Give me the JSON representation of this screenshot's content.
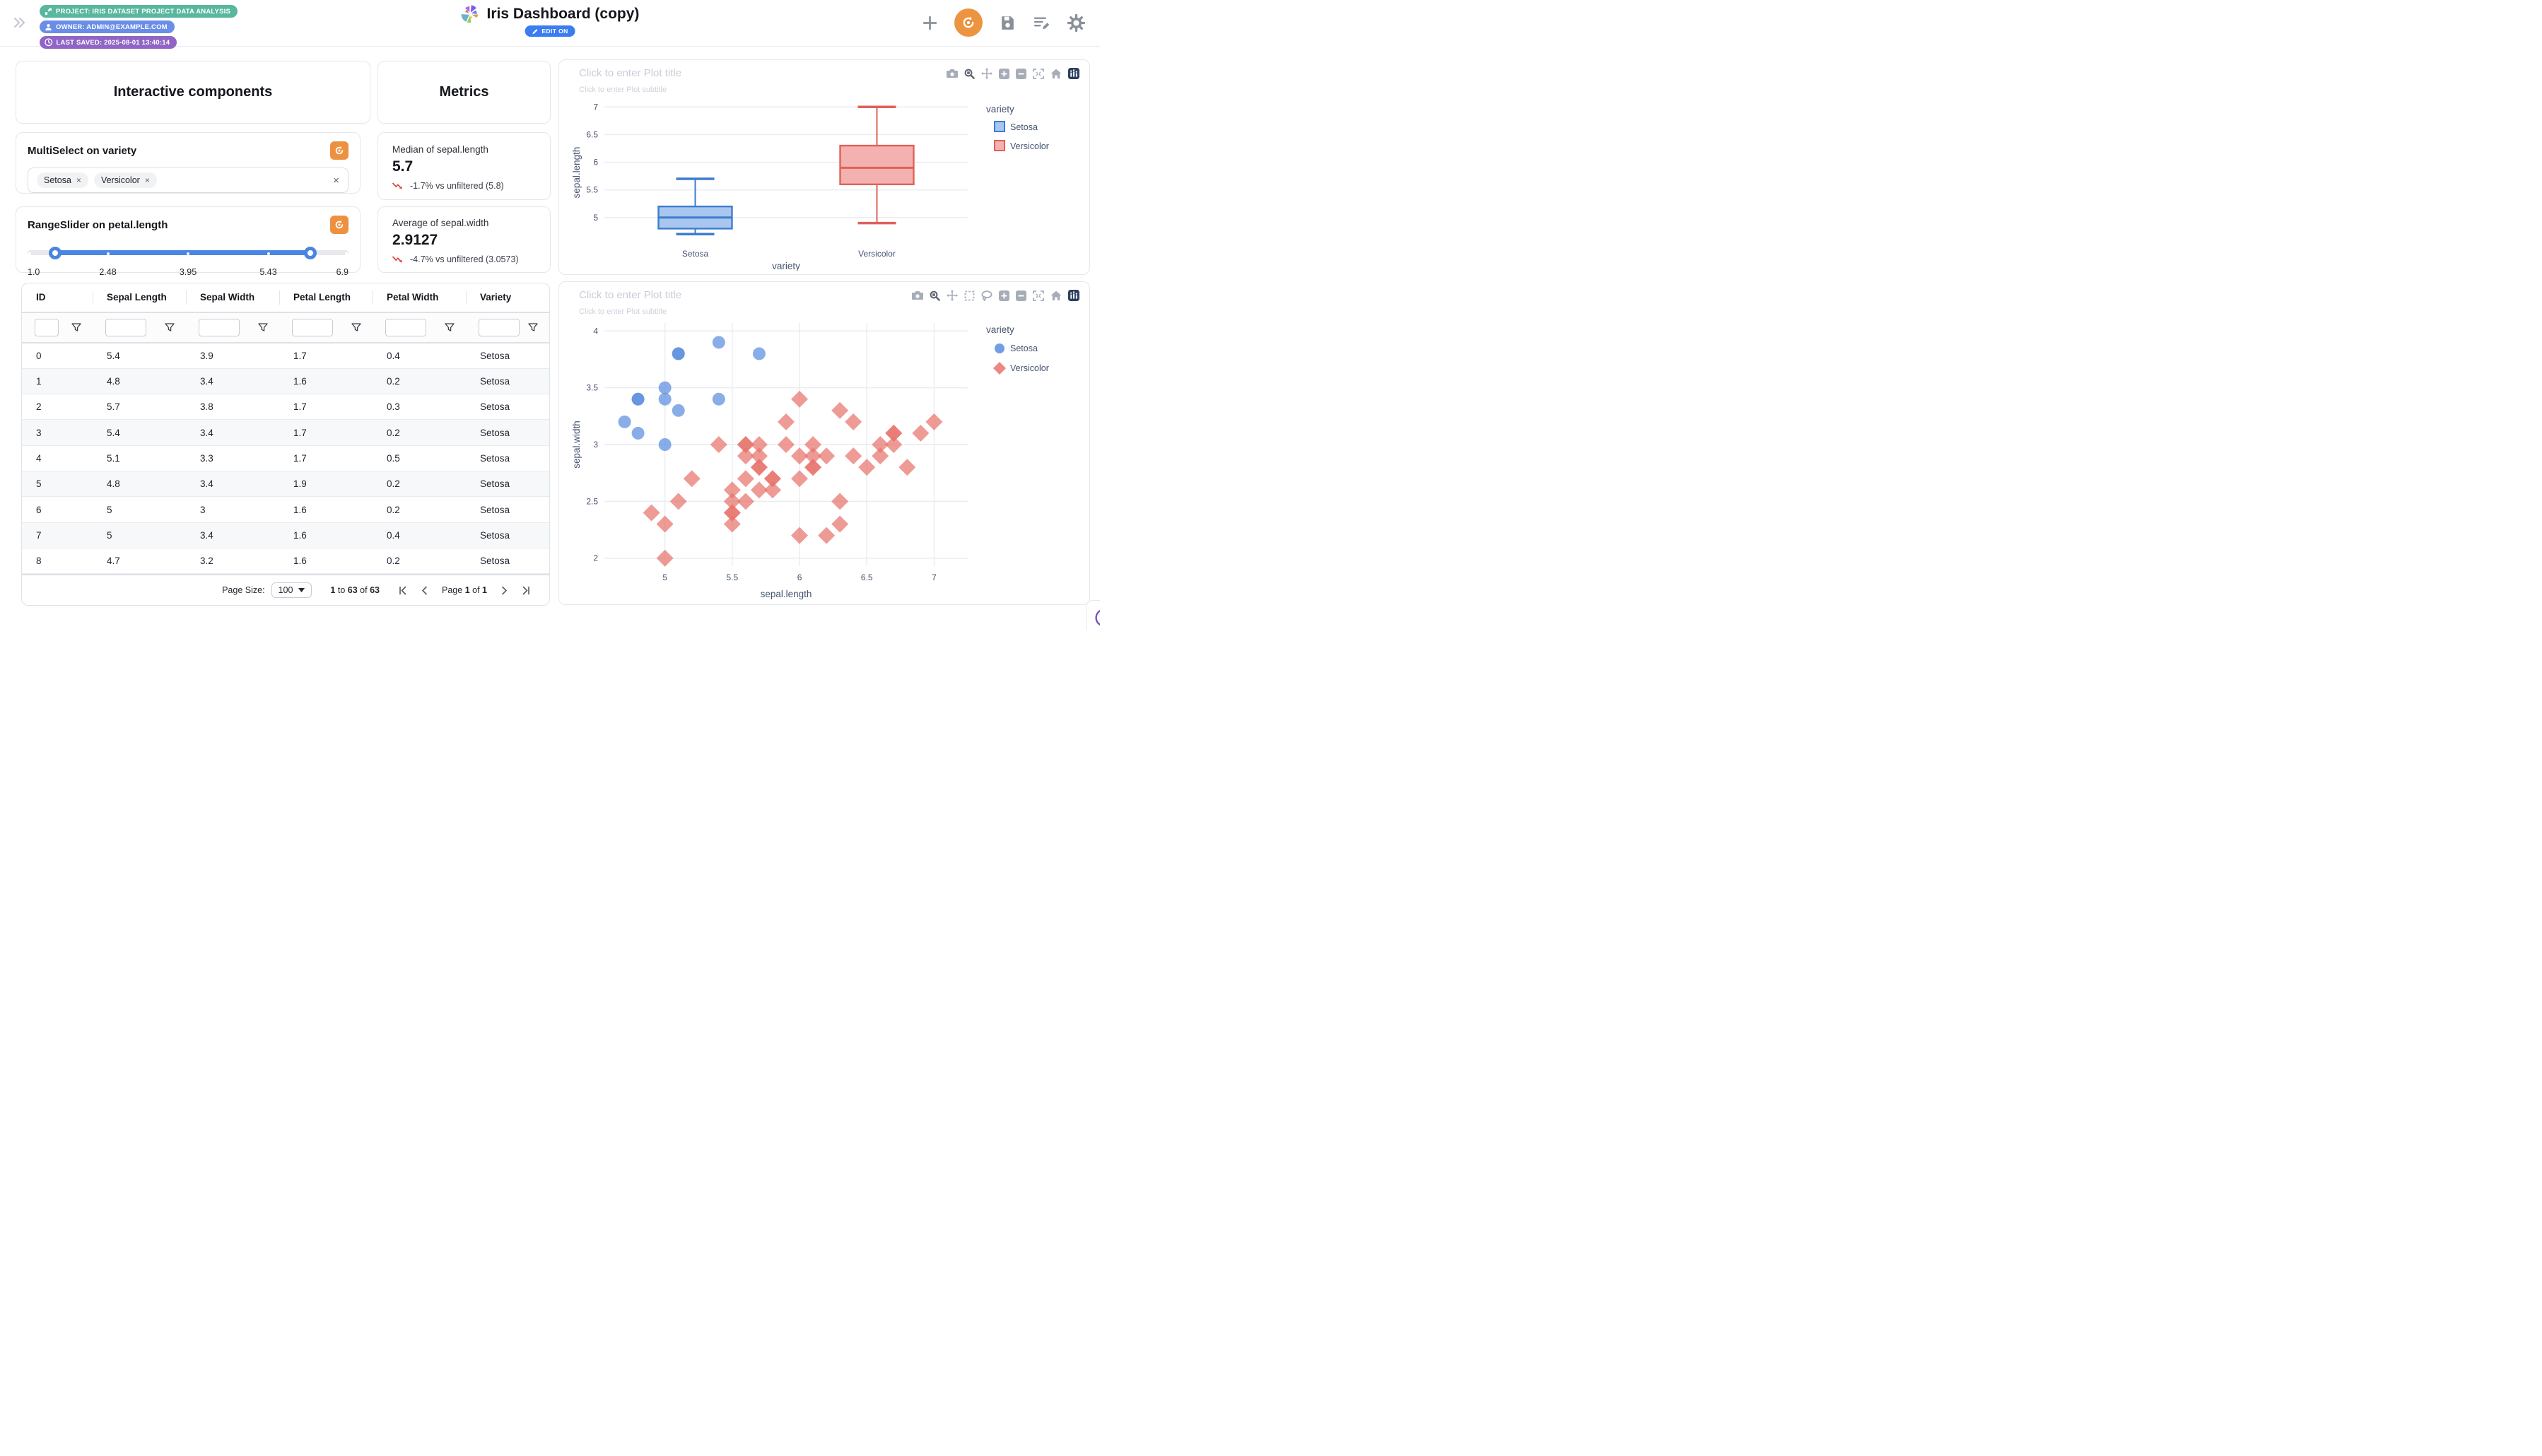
{
  "header": {
    "collapse_icon": "double-chevron-right",
    "badges": [
      {
        "id": "project",
        "label": "PROJECT: IRIS DATASET PROJECT DATA ANALYSIS",
        "color": "#58b79e",
        "icon": "project-icon"
      },
      {
        "id": "owner",
        "label": "OWNER: ADMIN@EXAMPLE.COM",
        "color": "#6a8ee6",
        "icon": "user-icon"
      },
      {
        "id": "last_saved",
        "label": "LAST SAVED: 2025-08-01 13:40:14",
        "color": "#9065c6",
        "icon": "clock-icon"
      }
    ],
    "title": "Iris Dashboard (copy)",
    "edit_toggle_label": "EDIT ON",
    "action_icons": [
      "add-icon",
      "reset-icon",
      "save-icon",
      "edit-list-icon",
      "settings-icon"
    ],
    "accent_orange": "#ec9440",
    "accent_blue": "#3b7cf0"
  },
  "interactive_panel": {
    "title": "Interactive components"
  },
  "metrics_panel": {
    "title": "Metrics"
  },
  "multiselect": {
    "title": "MultiSelect on variety",
    "selected": [
      "Setosa",
      "Versicolor"
    ],
    "remove_icon": "×",
    "clear_icon": "×"
  },
  "rangeslider": {
    "title": "RangeSlider on petal.length",
    "labels": [
      "1.0",
      "2.48",
      "3.95",
      "5.43",
      "6.9"
    ],
    "label_positions_pct": [
      0,
      25,
      50,
      75,
      100
    ],
    "handle_positions_pct": [
      8.7,
      88.2
    ],
    "track_color": "#4a86e0"
  },
  "metric_cards": [
    {
      "label": "Median of sepal.length",
      "value": "5.7",
      "delta": "-1.7% vs unfiltered (5.8)",
      "trend": "down",
      "trend_color": "#e0433d"
    },
    {
      "label": "Average of sepal.width",
      "value": "2.9127",
      "delta": "-4.7% vs unfiltered (3.0573)",
      "trend": "down",
      "trend_color": "#e0433d"
    }
  ],
  "table": {
    "columns": [
      "ID",
      "Sepal Length",
      "Sepal Width",
      "Petal Length",
      "Petal Width",
      "Variety"
    ],
    "filter_icon": "funnel-icon",
    "rows": [
      [
        "0",
        "5.4",
        "3.9",
        "1.7",
        "0.4",
        "Setosa"
      ],
      [
        "1",
        "4.8",
        "3.4",
        "1.6",
        "0.2",
        "Setosa"
      ],
      [
        "2",
        "5.7",
        "3.8",
        "1.7",
        "0.3",
        "Setosa"
      ],
      [
        "3",
        "5.4",
        "3.4",
        "1.7",
        "0.2",
        "Setosa"
      ],
      [
        "4",
        "5.1",
        "3.3",
        "1.7",
        "0.5",
        "Setosa"
      ],
      [
        "5",
        "4.8",
        "3.4",
        "1.9",
        "0.2",
        "Setosa"
      ],
      [
        "6",
        "5",
        "3",
        "1.6",
        "0.2",
        "Setosa"
      ],
      [
        "7",
        "5",
        "3.4",
        "1.6",
        "0.4",
        "Setosa"
      ],
      [
        "8",
        "4.7",
        "3.2",
        "1.6",
        "0.2",
        "Setosa"
      ]
    ],
    "pagination": {
      "page_size_label": "Page Size:",
      "page_size": "100",
      "range": {
        "from": "1",
        "word_to": "to",
        "to": "63",
        "word_of": "of",
        "total": "63"
      },
      "page": {
        "word_page": "Page",
        "current": "1",
        "word_of": "of",
        "total": "1"
      },
      "nav_icons": [
        "first-page-icon",
        "prev-page-icon",
        "next-page-icon",
        "last-page-icon"
      ]
    }
  },
  "chart_data": [
    {
      "type": "box",
      "title_placeholder": "Click to enter Plot title",
      "subtitle_placeholder": "Click to enter Plot subtitle",
      "xlabel": "variety",
      "ylabel": "sepal.length",
      "legend_title": "variety",
      "categories": [
        "Setosa",
        "Versicolor"
      ],
      "yticks": [
        5,
        5.5,
        6,
        6.5,
        7
      ],
      "ylim": [
        4.55,
        7.08
      ],
      "grid": true,
      "legend_position": "right",
      "modebar": [
        "camera",
        "zoom",
        "pan",
        "zoom-in",
        "zoom-out",
        "autoscale",
        "reset-home",
        "plotly-logo"
      ],
      "series": [
        {
          "name": "Setosa",
          "min": 4.7,
          "q1": 4.8,
          "median": 5.0,
          "q3": 5.2,
          "max": 5.7,
          "stroke": "#3d7cd0",
          "fill": "#a9c7ee"
        },
        {
          "name": "Versicolor",
          "min": 4.9,
          "q1": 5.6,
          "median": 5.9,
          "q3": 6.3,
          "max": 7.0,
          "stroke": "#e0605a",
          "fill": "#f3b2af"
        }
      ]
    },
    {
      "type": "scatter",
      "title_placeholder": "Click to enter Plot title",
      "subtitle_placeholder": "Click to enter Plot subtitle",
      "xlabel": "sepal.length",
      "ylabel": "sepal.width",
      "legend_title": "variety",
      "xticks": [
        5,
        5.5,
        6,
        6.5,
        7
      ],
      "yticks": [
        2,
        2.5,
        3,
        3.5,
        4
      ],
      "xlim": [
        4.55,
        7.25
      ],
      "ylim": [
        1.93,
        4.07
      ],
      "grid": true,
      "legend_position": "right",
      "modebar": [
        "camera",
        "zoom",
        "pan",
        "box-select",
        "lasso",
        "zoom-in",
        "zoom-out",
        "autoscale",
        "reset-home",
        "plotly-logo"
      ],
      "series": [
        {
          "name": "Setosa",
          "marker": "circle",
          "color": "#5b8dde",
          "points": [
            [
              5.4,
              3.9
            ],
            [
              4.8,
              3.4
            ],
            [
              5.7,
              3.8
            ],
            [
              5.4,
              3.4
            ],
            [
              5.1,
              3.3
            ],
            [
              4.8,
              3.4
            ],
            [
              5,
              3
            ],
            [
              5,
              3.4
            ],
            [
              4.7,
              3.2
            ],
            [
              4.8,
              3.1
            ],
            [
              5.1,
              3.8
            ],
            [
              5.1,
              3.8
            ],
            [
              5,
              3.5
            ]
          ]
        },
        {
          "name": "Versicolor",
          "marker": "diamond",
          "color": "#e8736c",
          "points": [
            [
              7,
              3.2
            ],
            [
              6.4,
              3.2
            ],
            [
              6.9,
              3.1
            ],
            [
              5.5,
              2.3
            ],
            [
              6.5,
              2.8
            ],
            [
              5.7,
              2.8
            ],
            [
              6.3,
              3.3
            ],
            [
              4.9,
              2.4
            ],
            [
              6.6,
              2.9
            ],
            [
              5.2,
              2.7
            ],
            [
              5,
              2
            ],
            [
              5.9,
              3
            ],
            [
              6,
              2.2
            ],
            [
              6.1,
              2.9
            ],
            [
              5.6,
              2.9
            ],
            [
              6.7,
              3.1
            ],
            [
              5.6,
              3
            ],
            [
              5.8,
              2.7
            ],
            [
              6.2,
              2.2
            ],
            [
              5.6,
              2.5
            ],
            [
              5.9,
              3.2
            ],
            [
              6.1,
              2.8
            ],
            [
              6.3,
              2.5
            ],
            [
              6.1,
              2.8
            ],
            [
              6.4,
              2.9
            ],
            [
              6.6,
              3
            ],
            [
              6.8,
              2.8
            ],
            [
              6.7,
              3
            ],
            [
              6,
              2.9
            ],
            [
              5.7,
              2.6
            ],
            [
              5.5,
              2.4
            ],
            [
              5.5,
              2.4
            ],
            [
              5.8,
              2.7
            ],
            [
              6,
              2.7
            ],
            [
              5.4,
              3
            ],
            [
              6,
              3.4
            ],
            [
              6.7,
              3.1
            ],
            [
              6.3,
              2.3
            ],
            [
              5.6,
              3
            ],
            [
              5.5,
              2.5
            ],
            [
              5.5,
              2.6
            ],
            [
              6.1,
              3
            ],
            [
              5.8,
              2.6
            ],
            [
              5,
              2.3
            ],
            [
              5.6,
              2.7
            ],
            [
              5.7,
              3
            ],
            [
              5.7,
              2.9
            ],
            [
              6.2,
              2.9
            ],
            [
              5.1,
              2.5
            ],
            [
              5.7,
              2.8
            ]
          ]
        }
      ]
    }
  ],
  "floating_button": {
    "icon": "collapse-double-chevron-left-icon",
    "color": "#7c4fc0"
  }
}
